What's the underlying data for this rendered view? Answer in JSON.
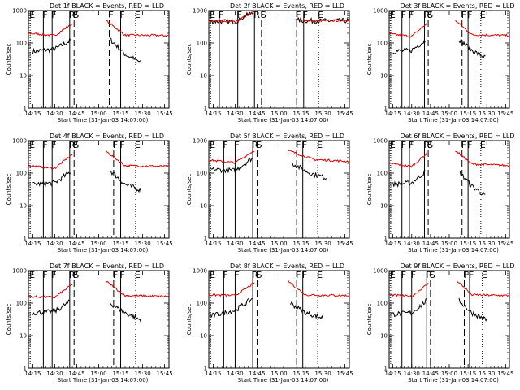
{
  "chart_data": {
    "type": "line",
    "log_y": true,
    "ylim": [
      1,
      1000
    ],
    "y_ticks": [
      1,
      10,
      100,
      1000
    ],
    "y_tick_labels": [
      "1",
      "10",
      "100",
      "1000"
    ],
    "xlim": [
      14.2,
      15.8
    ],
    "x_ticks": [
      14.25,
      14.5,
      14.75,
      15.0,
      15.25,
      15.5,
      15.75
    ],
    "x_tick_labels": [
      "14:15",
      "14:30",
      "14:45",
      "15:00",
      "15:15",
      "15:30",
      "15:45"
    ],
    "xlabel": "Start Time (31-Jan-03 14:07:00)",
    "ylabel": "Counts/sec",
    "colors": {
      "events": "#000000",
      "lld": "#dd0000"
    },
    "panels": [
      {
        "title": "Det 1f BLACK = Events, RED = LLD",
        "markers": [
          {
            "label": "E",
            "x": 14.22,
            "style": "dotted"
          },
          {
            "label": "F",
            "x": 14.37,
            "style": "solid"
          },
          {
            "label": "F",
            "x": 14.47,
            "style": "solid"
          },
          {
            "label": "R",
            "x": 14.67,
            "style": "solid"
          },
          {
            "label": "S",
            "x": 14.72,
            "style": "dashed"
          },
          {
            "label": "F",
            "x": 15.12,
            "style": "dashed"
          },
          {
            "label": "F",
            "x": 15.25,
            "style": "solid"
          },
          {
            "label": "E",
            "x": 15.42,
            "style": "dotted"
          }
        ],
        "events": {
          "pre": {
            "x": [
              14.25,
              14.5,
              14.68
            ],
            "y": [
              55,
              65,
              120
            ]
          },
          "post": {
            "x": [
              15.13,
              15.3,
              15.48
            ],
            "y": [
              130,
              45,
              25
            ]
          }
        },
        "lld": {
          "pre": {
            "x": [
              14.2,
              14.5,
              14.7
            ],
            "y": [
              200,
              170,
              400
            ]
          },
          "post": {
            "x": [
              15.08,
              15.3,
              15.8
            ],
            "y": [
              500,
              175,
              170
            ]
          }
        }
      },
      {
        "title": "Det 2f BLACK = Events, RED = LLD",
        "markers": [
          {
            "label": "E",
            "x": 14.22,
            "style": "dotted"
          },
          {
            "label": "F",
            "x": 14.32,
            "style": "solid"
          },
          {
            "label": "F",
            "x": 14.53,
            "style": "solid"
          },
          {
            "label": "R",
            "x": 14.72,
            "style": "solid"
          },
          {
            "label": "S",
            "x": 14.8,
            "style": "dashed"
          },
          {
            "label": "F",
            "x": 15.2,
            "style": "dashed"
          },
          {
            "label": "F",
            "x": 15.28,
            "style": "solid"
          },
          {
            "label": "E",
            "x": 15.45,
            "style": "dotted"
          }
        ],
        "events": {
          "pre": {
            "x": [
              14.2,
              14.5,
              14.7
            ],
            "y": [
              470,
              450,
              900
            ]
          },
          "post": {
            "x": [
              15.2,
              15.4,
              15.8
            ],
            "y": [
              500,
              480,
              490
            ]
          }
        },
        "lld": {
          "pre": {
            "x": [
              14.2,
              14.5,
              14.72
            ],
            "y": [
              480,
              450,
              950
            ]
          },
          "post": {
            "x": [
              15.18,
              15.4,
              15.8
            ],
            "y": [
              520,
              480,
              500
            ]
          }
        }
      },
      {
        "title": "Det 3f BLACK = Events, RED = LLD",
        "markers": [
          {
            "label": "E",
            "x": 14.22,
            "style": "dotted"
          },
          {
            "label": "F",
            "x": 14.37,
            "style": "solid"
          },
          {
            "label": "F",
            "x": 14.47,
            "style": "solid"
          },
          {
            "label": "R",
            "x": 14.67,
            "style": "solid"
          },
          {
            "label": "S",
            "x": 14.72,
            "style": "dashed"
          },
          {
            "label": "F",
            "x": 15.17,
            "style": "dashed"
          },
          {
            "label": "F",
            "x": 15.25,
            "style": "solid"
          },
          {
            "label": "E",
            "x": 15.42,
            "style": "dotted"
          }
        ],
        "events": {
          "pre": {
            "x": [
              14.25,
              14.5,
              14.68
            ],
            "y": [
              55,
              60,
              120
            ]
          },
          "post": {
            "x": [
              15.13,
              15.3,
              15.48
            ],
            "y": [
              130,
              60,
              35
            ]
          }
        },
        "lld": {
          "pre": {
            "x": [
              14.2,
              14.5,
              14.7
            ],
            "y": [
              190,
              160,
              400
            ]
          },
          "post": {
            "x": [
              15.08,
              15.3,
              15.8
            ],
            "y": [
              500,
              180,
              170
            ]
          }
        }
      },
      {
        "title": "Det 4f BLACK = Events, RED = LLD",
        "markers": [
          {
            "label": "E",
            "x": 14.22,
            "style": "dotted"
          },
          {
            "label": "F",
            "x": 14.37,
            "style": "solid"
          },
          {
            "label": "F",
            "x": 14.47,
            "style": "solid"
          },
          {
            "label": "R",
            "x": 14.67,
            "style": "solid"
          },
          {
            "label": "S",
            "x": 14.72,
            "style": "dashed"
          },
          {
            "label": "F",
            "x": 15.17,
            "style": "dashed"
          },
          {
            "label": "F",
            "x": 15.25,
            "style": "solid"
          },
          {
            "label": "E",
            "x": 15.42,
            "style": "dotted"
          }
        ],
        "events": {
          "pre": {
            "x": [
              14.25,
              14.5,
              14.68
            ],
            "y": [
              45,
              50,
              110
            ]
          },
          "post": {
            "x": [
              15.13,
              15.3,
              15.48
            ],
            "y": [
              120,
              45,
              30
            ]
          }
        },
        "lld": {
          "pre": {
            "x": [
              14.2,
              14.5,
              14.7
            ],
            "y": [
              170,
              140,
              380
            ]
          },
          "post": {
            "x": [
              15.08,
              15.3,
              15.8
            ],
            "y": [
              480,
              170,
              160
            ]
          }
        }
      },
      {
        "title": "Det 5f BLACK = Events, RED = LLD",
        "markers": [
          {
            "label": "E",
            "x": 14.22,
            "style": "dotted"
          },
          {
            "label": "F",
            "x": 14.37,
            "style": "solid"
          },
          {
            "label": "F",
            "x": 14.5,
            "style": "solid"
          },
          {
            "label": "R",
            "x": 14.7,
            "style": "solid"
          },
          {
            "label": "S",
            "x": 14.75,
            "style": "dashed"
          },
          {
            "label": "F",
            "x": 15.2,
            "style": "dashed"
          },
          {
            "label": "F",
            "x": 15.27,
            "style": "solid"
          },
          {
            "label": "E",
            "x": 15.44,
            "style": "dotted"
          }
        ],
        "events": {
          "pre": {
            "x": [
              14.22,
              14.5,
              14.7
            ],
            "y": [
              130,
              120,
              300
            ]
          },
          "post": {
            "x": [
              15.15,
              15.35,
              15.55
            ],
            "y": [
              200,
              100,
              70
            ]
          }
        },
        "lld": {
          "pre": {
            "x": [
              14.2,
              14.5,
              14.72
            ],
            "y": [
              250,
              210,
              500
            ]
          },
          "post": {
            "x": [
              15.1,
              15.4,
              15.8
            ],
            "y": [
              500,
              260,
              230
            ]
          }
        }
      },
      {
        "title": "Det 6f BLACK = Events, RED = LLD",
        "markers": [
          {
            "label": "E",
            "x": 14.22,
            "style": "dotted"
          },
          {
            "label": "F",
            "x": 14.37,
            "style": "solid"
          },
          {
            "label": "F",
            "x": 14.47,
            "style": "solid"
          },
          {
            "label": "R",
            "x": 14.67,
            "style": "solid"
          },
          {
            "label": "S",
            "x": 14.72,
            "style": "dashed"
          },
          {
            "label": "F",
            "x": 15.17,
            "style": "dashed"
          },
          {
            "label": "F",
            "x": 15.25,
            "style": "solid"
          },
          {
            "label": "E",
            "x": 15.42,
            "style": "dotted"
          }
        ],
        "events": {
          "pre": {
            "x": [
              14.25,
              14.5,
              14.68
            ],
            "y": [
              45,
              50,
              110
            ]
          },
          "post": {
            "x": [
              15.13,
              15.3,
              15.48
            ],
            "y": [
              110,
              40,
              20
            ]
          }
        },
        "lld": {
          "pre": {
            "x": [
              14.2,
              14.5,
              14.7
            ],
            "y": [
              200,
              160,
              400
            ]
          },
          "post": {
            "x": [
              15.08,
              15.3,
              15.8
            ],
            "y": [
              500,
              190,
              170
            ]
          }
        }
      },
      {
        "title": "Det 7f BLACK = Events, RED = LLD",
        "markers": [
          {
            "label": "E",
            "x": 14.22,
            "style": "dotted"
          },
          {
            "label": "F",
            "x": 14.37,
            "style": "solid"
          },
          {
            "label": "F",
            "x": 14.47,
            "style": "solid"
          },
          {
            "label": "R",
            "x": 14.67,
            "style": "solid"
          },
          {
            "label": "S",
            "x": 14.72,
            "style": "dashed"
          },
          {
            "label": "F",
            "x": 15.17,
            "style": "dashed"
          },
          {
            "label": "F",
            "x": 15.25,
            "style": "solid"
          },
          {
            "label": "E",
            "x": 15.42,
            "style": "dotted"
          }
        ],
        "events": {
          "pre": {
            "x": [
              14.25,
              14.5,
              14.68
            ],
            "y": [
              50,
              55,
              115
            ]
          },
          "post": {
            "x": [
              15.13,
              15.3,
              15.48
            ],
            "y": [
              100,
              50,
              30
            ]
          }
        },
        "lld": {
          "pre": {
            "x": [
              14.2,
              14.5,
              14.7
            ],
            "y": [
              160,
              150,
              380
            ]
          },
          "post": {
            "x": [
              15.08,
              15.3,
              15.8
            ],
            "y": [
              480,
              170,
              160
            ]
          }
        }
      },
      {
        "title": "Det 8f BLACK = Events, RED = LLD",
        "markers": [
          {
            "label": "E",
            "x": 14.22,
            "style": "dotted"
          },
          {
            "label": "F",
            "x": 14.37,
            "style": "solid"
          },
          {
            "label": "F",
            "x": 14.5,
            "style": "solid"
          },
          {
            "label": "R",
            "x": 14.7,
            "style": "solid"
          },
          {
            "label": "S",
            "x": 14.75,
            "style": "dashed"
          },
          {
            "label": "F",
            "x": 15.2,
            "style": "dashed"
          },
          {
            "label": "F",
            "x": 15.27,
            "style": "solid"
          },
          {
            "label": "E",
            "x": 15.44,
            "style": "dotted"
          }
        ],
        "events": {
          "pre": {
            "x": [
              14.22,
              14.5,
              14.7
            ],
            "y": [
              40,
              60,
              140
            ]
          },
          "post": {
            "x": [
              15.13,
              15.3,
              15.5
            ],
            "y": [
              100,
              50,
              35
            ]
          }
        },
        "lld": {
          "pre": {
            "x": [
              14.2,
              14.5,
              14.72
            ],
            "y": [
              180,
              170,
              420
            ]
          },
          "post": {
            "x": [
              15.1,
              15.3,
              15.8
            ],
            "y": [
              480,
              180,
              170
            ]
          }
        }
      },
      {
        "title": "Det 9f BLACK = Events, RED = LLD",
        "markers": [
          {
            "label": "E",
            "x": 14.22,
            "style": "dotted"
          },
          {
            "label": "F",
            "x": 14.37,
            "style": "solid"
          },
          {
            "label": "F",
            "x": 14.5,
            "style": "solid"
          },
          {
            "label": "R",
            "x": 14.7,
            "style": "solid"
          },
          {
            "label": "S",
            "x": 14.75,
            "style": "dashed"
          },
          {
            "label": "F",
            "x": 15.2,
            "style": "dashed"
          },
          {
            "label": "F",
            "x": 15.27,
            "style": "solid"
          },
          {
            "label": "E",
            "x": 15.44,
            "style": "dotted"
          }
        ],
        "events": {
          "pre": {
            "x": [
              14.22,
              14.5,
              14.7
            ],
            "y": [
              45,
              50,
              120
            ]
          },
          "post": {
            "x": [
              15.13,
              15.3,
              15.5
            ],
            "y": [
              120,
              50,
              30
            ]
          }
        },
        "lld": {
          "pre": {
            "x": [
              14.2,
              14.5,
              14.72
            ],
            "y": [
              180,
              160,
              400
            ]
          },
          "post": {
            "x": [
              15.1,
              15.3,
              15.8
            ],
            "y": [
              500,
              180,
              170
            ]
          }
        }
      }
    ]
  }
}
